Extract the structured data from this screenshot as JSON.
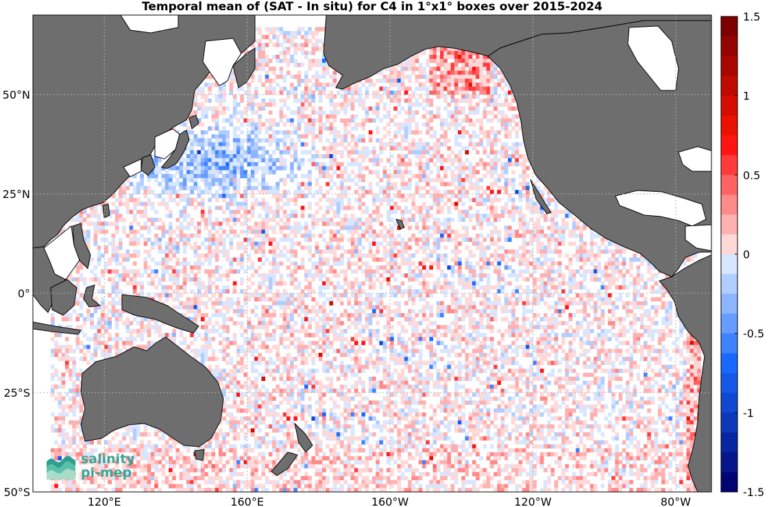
{
  "title": "Temporal mean of (SAT - In situ) for C4 in 1°x1° boxes over 2015-2024",
  "map": {
    "region": "Pacific Ocean",
    "lon_range_deg_east": [
      100,
      290
    ],
    "lat_range_deg": [
      -50,
      70
    ],
    "lon_ticks": [
      {
        "value": 120,
        "label": "120°E"
      },
      {
        "value": 160,
        "label": "160°E"
      },
      {
        "value": 200,
        "label": "160°W"
      },
      {
        "value": 240,
        "label": "120°W"
      },
      {
        "value": 280,
        "label": "80°W"
      }
    ],
    "lat_ticks": [
      {
        "value": 50,
        "label": "50°N"
      },
      {
        "value": 25,
        "label": "25°N"
      },
      {
        "value": 0,
        "label": "0°"
      },
      {
        "value": -25,
        "label": "25°S"
      },
      {
        "value": -50,
        "label": "50°S"
      }
    ],
    "grid": true,
    "land_color": "#6e6e6e",
    "background_color": "#ffffff"
  },
  "colorbar": {
    "range": [
      -1.5,
      1.5
    ],
    "ticks": [
      {
        "value": 1.5,
        "label": "1.5"
      },
      {
        "value": 1,
        "label": "1"
      },
      {
        "value": 0.5,
        "label": "0.5"
      },
      {
        "value": 0,
        "label": "0"
      },
      {
        "value": -0.5,
        "label": "-0.5"
      },
      {
        "value": -1,
        "label": "-1"
      },
      {
        "value": -1.5,
        "label": "-1.5"
      }
    ],
    "colormap": "blue-white-red"
  },
  "logo": {
    "line1": "salinity",
    "line2": "pi-mep",
    "color": "#3aa597"
  }
}
